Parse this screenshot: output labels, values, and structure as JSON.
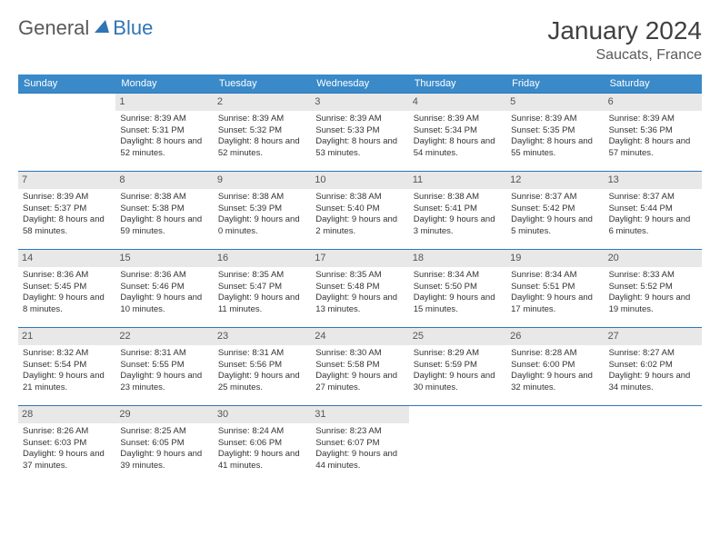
{
  "logo": {
    "general": "General",
    "blue": "Blue"
  },
  "title": "January 2024",
  "location": "Saucats, France",
  "weekdays": [
    "Sunday",
    "Monday",
    "Tuesday",
    "Wednesday",
    "Thursday",
    "Friday",
    "Saturday"
  ],
  "colors": {
    "header_bg": "#3a8ac9",
    "border": "#2f75b5",
    "daynum_bg": "#e8e8e8",
    "text": "#333333"
  },
  "first_day_col": 1,
  "days": [
    {
      "n": 1,
      "sr": "8:39 AM",
      "ss": "5:31 PM",
      "dl": "8 hours and 52 minutes."
    },
    {
      "n": 2,
      "sr": "8:39 AM",
      "ss": "5:32 PM",
      "dl": "8 hours and 52 minutes."
    },
    {
      "n": 3,
      "sr": "8:39 AM",
      "ss": "5:33 PM",
      "dl": "8 hours and 53 minutes."
    },
    {
      "n": 4,
      "sr": "8:39 AM",
      "ss": "5:34 PM",
      "dl": "8 hours and 54 minutes."
    },
    {
      "n": 5,
      "sr": "8:39 AM",
      "ss": "5:35 PM",
      "dl": "8 hours and 55 minutes."
    },
    {
      "n": 6,
      "sr": "8:39 AM",
      "ss": "5:36 PM",
      "dl": "8 hours and 57 minutes."
    },
    {
      "n": 7,
      "sr": "8:39 AM",
      "ss": "5:37 PM",
      "dl": "8 hours and 58 minutes."
    },
    {
      "n": 8,
      "sr": "8:38 AM",
      "ss": "5:38 PM",
      "dl": "8 hours and 59 minutes."
    },
    {
      "n": 9,
      "sr": "8:38 AM",
      "ss": "5:39 PM",
      "dl": "9 hours and 0 minutes."
    },
    {
      "n": 10,
      "sr": "8:38 AM",
      "ss": "5:40 PM",
      "dl": "9 hours and 2 minutes."
    },
    {
      "n": 11,
      "sr": "8:38 AM",
      "ss": "5:41 PM",
      "dl": "9 hours and 3 minutes."
    },
    {
      "n": 12,
      "sr": "8:37 AM",
      "ss": "5:42 PM",
      "dl": "9 hours and 5 minutes."
    },
    {
      "n": 13,
      "sr": "8:37 AM",
      "ss": "5:44 PM",
      "dl": "9 hours and 6 minutes."
    },
    {
      "n": 14,
      "sr": "8:36 AM",
      "ss": "5:45 PM",
      "dl": "9 hours and 8 minutes."
    },
    {
      "n": 15,
      "sr": "8:36 AM",
      "ss": "5:46 PM",
      "dl": "9 hours and 10 minutes."
    },
    {
      "n": 16,
      "sr": "8:35 AM",
      "ss": "5:47 PM",
      "dl": "9 hours and 11 minutes."
    },
    {
      "n": 17,
      "sr": "8:35 AM",
      "ss": "5:48 PM",
      "dl": "9 hours and 13 minutes."
    },
    {
      "n": 18,
      "sr": "8:34 AM",
      "ss": "5:50 PM",
      "dl": "9 hours and 15 minutes."
    },
    {
      "n": 19,
      "sr": "8:34 AM",
      "ss": "5:51 PM",
      "dl": "9 hours and 17 minutes."
    },
    {
      "n": 20,
      "sr": "8:33 AM",
      "ss": "5:52 PM",
      "dl": "9 hours and 19 minutes."
    },
    {
      "n": 21,
      "sr": "8:32 AM",
      "ss": "5:54 PM",
      "dl": "9 hours and 21 minutes."
    },
    {
      "n": 22,
      "sr": "8:31 AM",
      "ss": "5:55 PM",
      "dl": "9 hours and 23 minutes."
    },
    {
      "n": 23,
      "sr": "8:31 AM",
      "ss": "5:56 PM",
      "dl": "9 hours and 25 minutes."
    },
    {
      "n": 24,
      "sr": "8:30 AM",
      "ss": "5:58 PM",
      "dl": "9 hours and 27 minutes."
    },
    {
      "n": 25,
      "sr": "8:29 AM",
      "ss": "5:59 PM",
      "dl": "9 hours and 30 minutes."
    },
    {
      "n": 26,
      "sr": "8:28 AM",
      "ss": "6:00 PM",
      "dl": "9 hours and 32 minutes."
    },
    {
      "n": 27,
      "sr": "8:27 AM",
      "ss": "6:02 PM",
      "dl": "9 hours and 34 minutes."
    },
    {
      "n": 28,
      "sr": "8:26 AM",
      "ss": "6:03 PM",
      "dl": "9 hours and 37 minutes."
    },
    {
      "n": 29,
      "sr": "8:25 AM",
      "ss": "6:05 PM",
      "dl": "9 hours and 39 minutes."
    },
    {
      "n": 30,
      "sr": "8:24 AM",
      "ss": "6:06 PM",
      "dl": "9 hours and 41 minutes."
    },
    {
      "n": 31,
      "sr": "8:23 AM",
      "ss": "6:07 PM",
      "dl": "9 hours and 44 minutes."
    }
  ],
  "labels": {
    "sunrise": "Sunrise:",
    "sunset": "Sunset:",
    "daylight": "Daylight:"
  }
}
